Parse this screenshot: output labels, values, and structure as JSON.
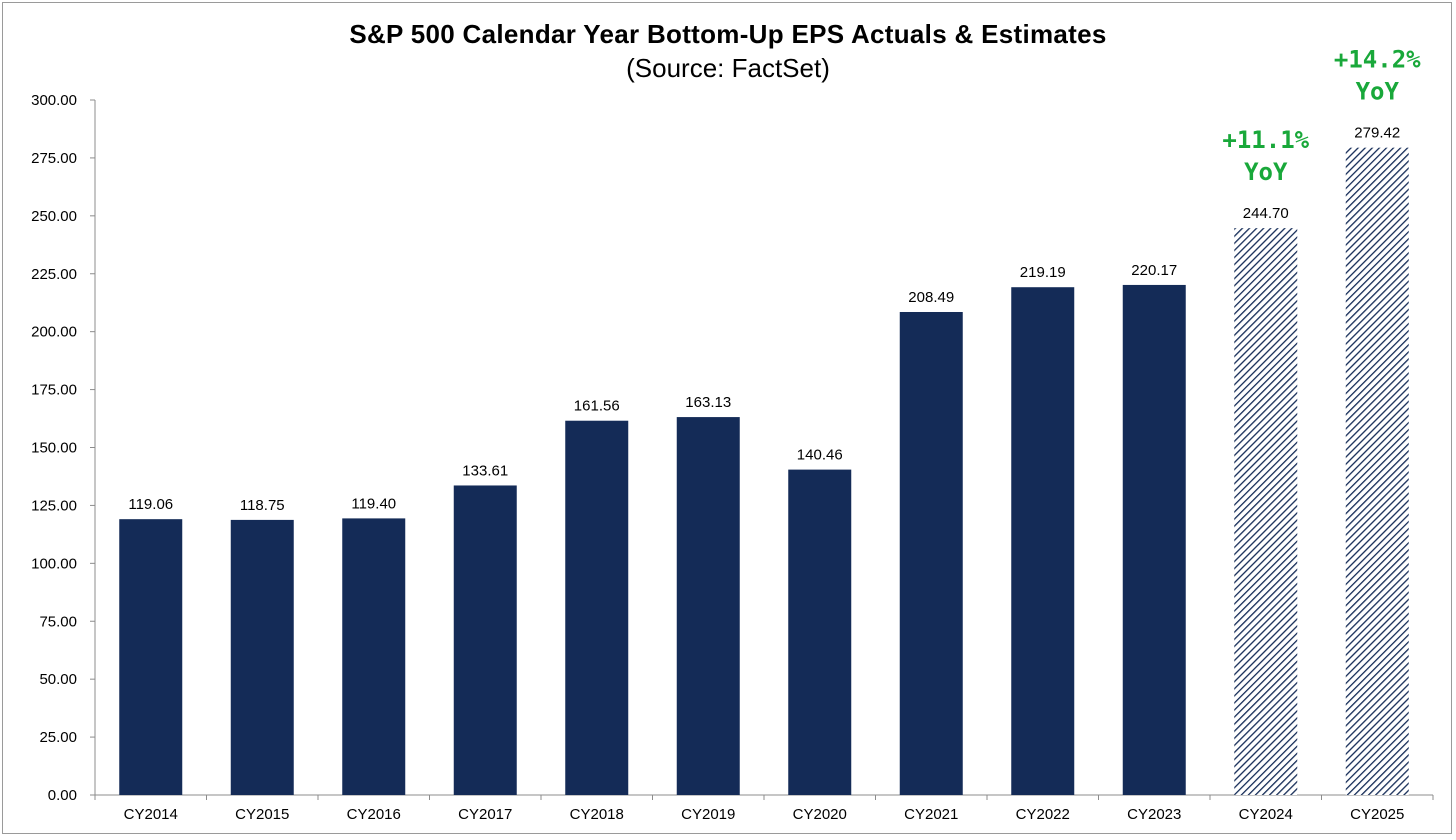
{
  "chart_data": {
    "type": "bar",
    "title": "S&P 500 Calendar Year Bottom-Up EPS Actuals & Estimates",
    "subtitle": "(Source: FactSet)",
    "categories": [
      "CY2014",
      "CY2015",
      "CY2016",
      "CY2017",
      "CY2018",
      "CY2019",
      "CY2020",
      "CY2021",
      "CY2022",
      "CY2023",
      "CY2024",
      "CY2025"
    ],
    "values": [
      119.06,
      118.75,
      119.4,
      133.61,
      161.56,
      163.13,
      140.46,
      208.49,
      219.19,
      220.17,
      244.7,
      279.42
    ],
    "value_labels": [
      "119.06",
      "118.75",
      "119.40",
      "133.61",
      "161.56",
      "163.13",
      "140.46",
      "208.49",
      "219.19",
      "220.17",
      "244.70",
      "279.42"
    ],
    "estimate_flags": [
      false,
      false,
      false,
      false,
      false,
      false,
      false,
      false,
      false,
      false,
      true,
      true
    ],
    "ylim": [
      0,
      300
    ],
    "y_ticks": [
      "0.00",
      "25.00",
      "50.00",
      "75.00",
      "100.00",
      "125.00",
      "150.00",
      "175.00",
      "200.00",
      "225.00",
      "250.00",
      "275.00",
      "300.00"
    ],
    "grid": false,
    "legend": "none",
    "annotations": [
      {
        "category": "CY2024",
        "lines": [
          "+11.1%",
          "YoY"
        ]
      },
      {
        "category": "CY2025",
        "lines": [
          "+14.2%",
          "YoY"
        ]
      }
    ],
    "colors": {
      "actual": "#142b57",
      "estimate": "#142b57",
      "annotation": "#19a83a",
      "axis": "#8c8c8c"
    }
  }
}
